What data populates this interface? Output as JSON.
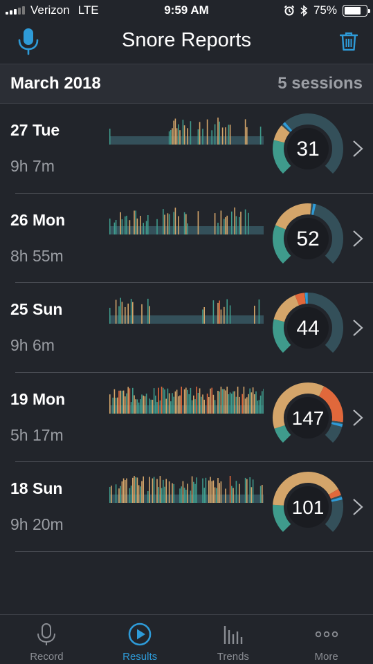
{
  "status_bar": {
    "carrier": "Verizon",
    "network": "LTE",
    "time": "9:59 AM",
    "battery": "75%",
    "battery_level": 0.75
  },
  "nav": {
    "title": "Snore Reports",
    "left_icon": "microphone-icon",
    "right_icon": "trash-icon"
  },
  "month": {
    "title": "March 2018",
    "count": "5 sessions"
  },
  "sessions": [
    {
      "day": "27 Tue",
      "duration": "9h 7m",
      "score": "31"
    },
    {
      "day": "26 Mon",
      "duration": "8h 55m",
      "score": "52"
    },
    {
      "day": "25 Sun",
      "duration": "9h 6m",
      "score": "44"
    },
    {
      "day": "19 Mon",
      "duration": "5h 17m",
      "score": "147"
    },
    {
      "day": "18 Sun",
      "duration": "9h 20m",
      "score": "101"
    }
  ],
  "tabs": [
    {
      "label": "Record",
      "icon": "microphone-icon"
    },
    {
      "label": "Results",
      "icon": "play-circle-icon",
      "active": true
    },
    {
      "label": "Trends",
      "icon": "bar-chart-icon"
    },
    {
      "label": "More",
      "icon": "more-dots-icon"
    }
  ],
  "colors": {
    "background": "#22252b",
    "accent": "#2e9bd8",
    "quiet": "#3f9b8c",
    "light": "#d4a56a",
    "loud": "#e0683b",
    "track": "#34505a"
  }
}
